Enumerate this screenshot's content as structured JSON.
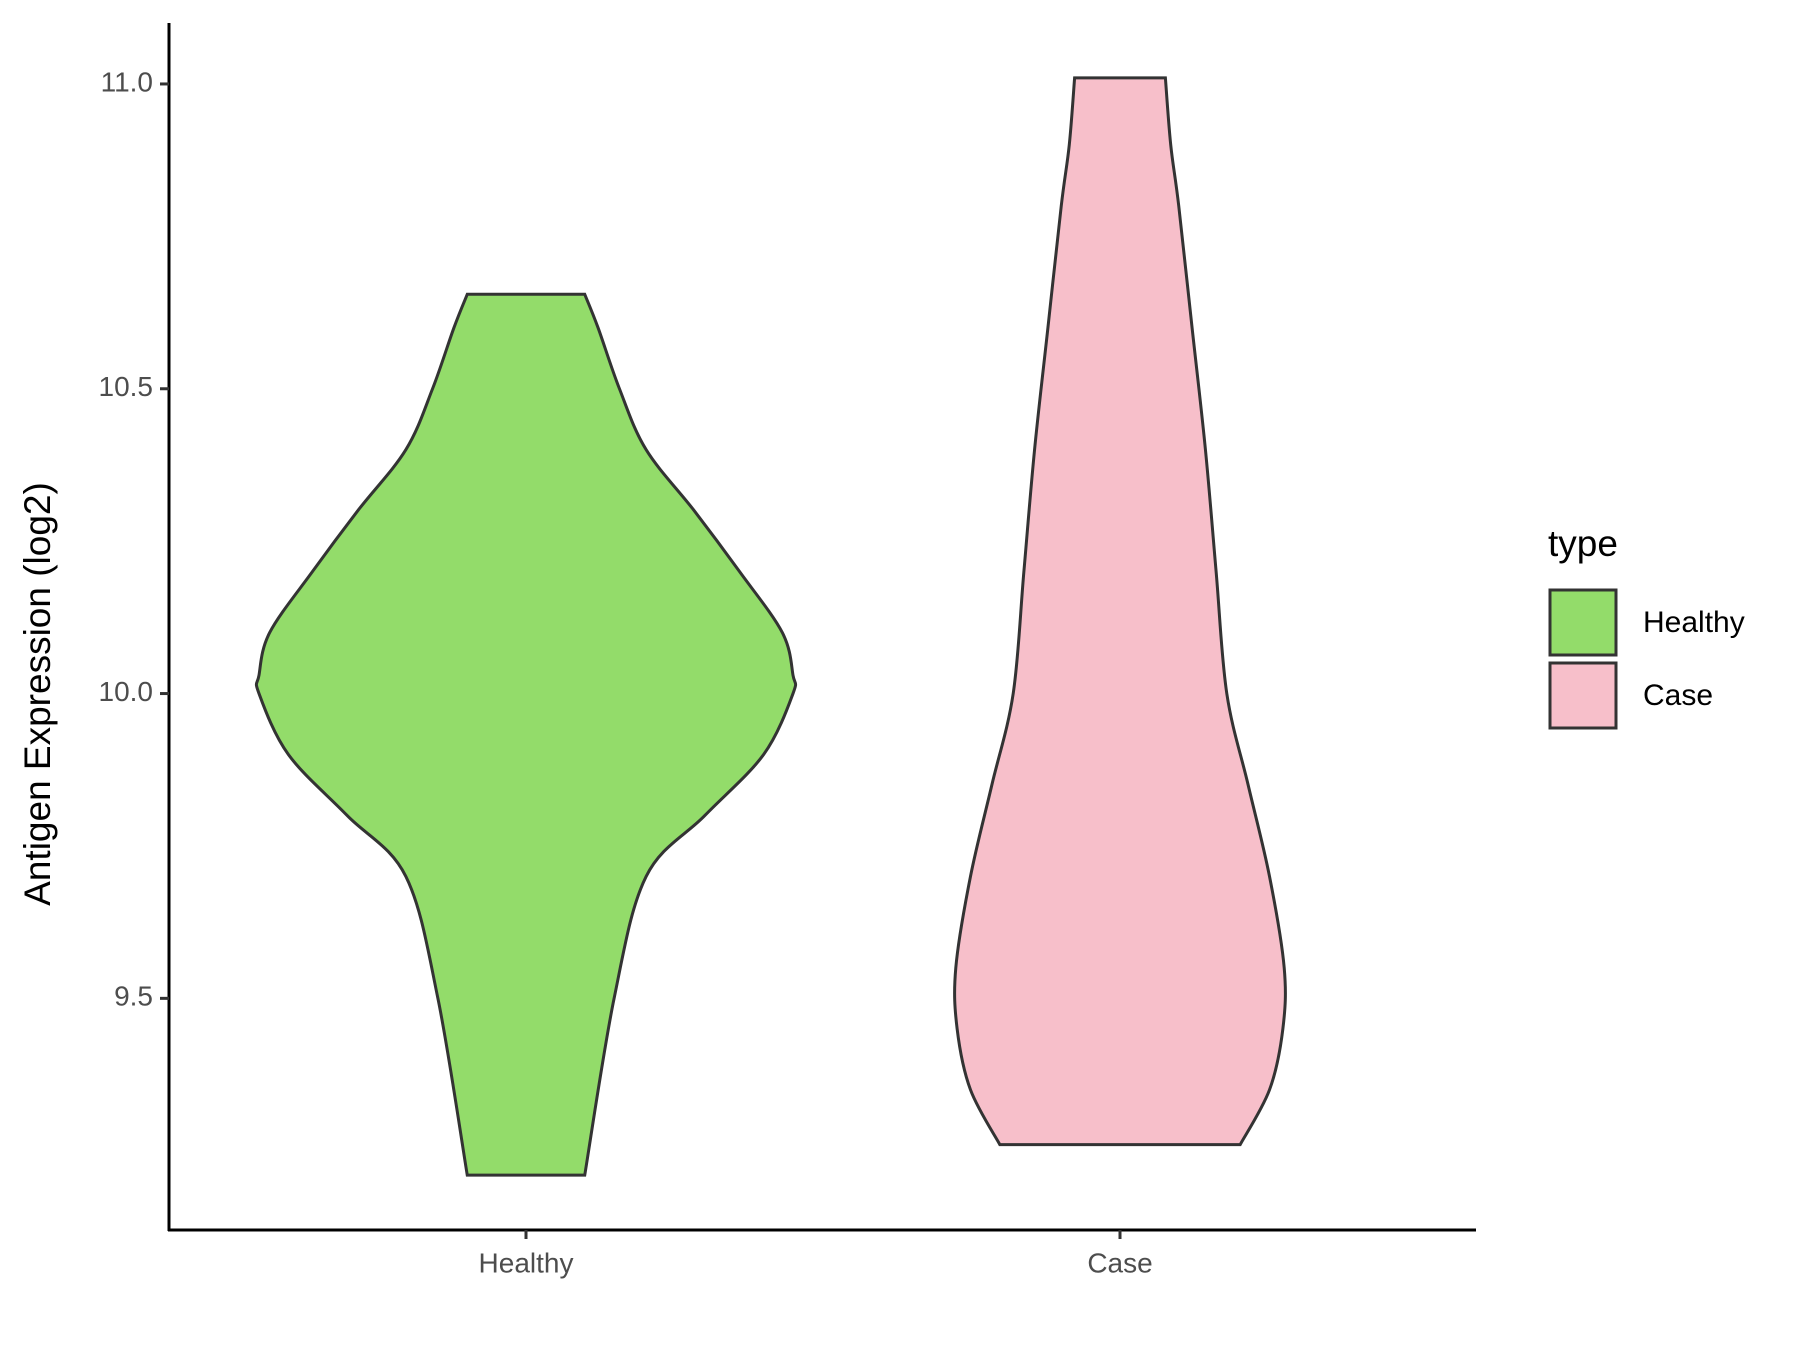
{
  "chart_data": {
    "type": "violin",
    "y_label": "Antigen Expression (log2)",
    "categories": [
      "Healthy",
      "Case"
    ],
    "legend_title": "type",
    "legend": "right",
    "ylim": [
      9.12,
      11.1
    ],
    "yticks": [
      9.5,
      {
        "value": 10,
        "label": "10.0"
      },
      10.5,
      {
        "value": 11,
        "label": "11.0"
      }
    ],
    "series": [
      {
        "name": "Healthy",
        "color": "#93dc6a",
        "y": [
          9.21,
          9.5,
          9.7,
          9.8,
          9.9,
          10.0,
          10.03,
          10.1,
          10.2,
          10.3,
          10.4,
          10.5,
          10.6,
          10.655
        ],
        "width": [
          0.22,
          0.33,
          0.45,
          0.67,
          0.89,
          1.0,
          1.0,
          0.96,
          0.8,
          0.63,
          0.45,
          0.35,
          0.27,
          0.22
        ]
      },
      {
        "name": "Case",
        "color": "#f7bfca",
        "y": [
          9.26,
          9.35,
          9.45,
          9.55,
          9.7,
          9.85,
          10.0,
          10.2,
          10.4,
          10.6,
          10.8,
          10.9,
          11.01
        ],
        "width": [
          0.45,
          0.56,
          0.61,
          0.615,
          0.56,
          0.48,
          0.4,
          0.36,
          0.32,
          0.27,
          0.22,
          0.19,
          0.17
        ]
      }
    ]
  }
}
